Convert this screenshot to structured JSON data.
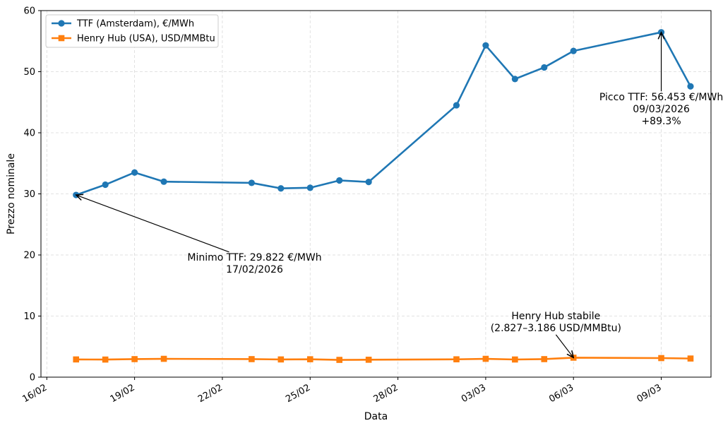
{
  "chart_data": {
    "type": "line",
    "xlabel": "Data",
    "ylabel": "Prezzo nominale",
    "xlim_days": [
      -0.2,
      22.7
    ],
    "ylim": [
      0,
      60
    ],
    "yticks": [
      0,
      10,
      20,
      30,
      40,
      50,
      60
    ],
    "xticks": [
      {
        "day": 0,
        "label": "16/02"
      },
      {
        "day": 3,
        "label": "19/02"
      },
      {
        "day": 6,
        "label": "22/02"
      },
      {
        "day": 9,
        "label": "25/02"
      },
      {
        "day": 12,
        "label": "28/02"
      },
      {
        "day": 15,
        "label": "03/03"
      },
      {
        "day": 18,
        "label": "06/03"
      },
      {
        "day": 21,
        "label": "09/03"
      }
    ],
    "grid": true,
    "legend_position": "top-left",
    "series": [
      {
        "name": "TTF (Amsterdam), €/MWh",
        "color": "#1f77b4",
        "marker": "circle",
        "x": [
          1,
          2,
          3,
          4,
          7,
          8,
          9,
          10,
          11,
          14,
          15,
          16,
          17,
          18,
          21,
          22
        ],
        "values": [
          29.822,
          31.5,
          33.5,
          32.0,
          31.8,
          30.9,
          31.0,
          32.2,
          31.95,
          44.5,
          54.3,
          48.8,
          50.7,
          53.4,
          56.453,
          47.6
        ]
      },
      {
        "name": "Henry Hub (USA), USD/MMBtu",
        "color": "#ff7f0e",
        "marker": "square",
        "x": [
          1,
          2,
          3,
          4,
          7,
          8,
          9,
          10,
          11,
          14,
          15,
          16,
          17,
          18,
          21,
          22
        ],
        "values": [
          2.9,
          2.88,
          2.95,
          3.0,
          2.95,
          2.9,
          2.93,
          2.827,
          2.85,
          2.92,
          3.0,
          2.89,
          2.95,
          3.186,
          3.12,
          3.05
        ]
      }
    ],
    "annotations": [
      {
        "lines": [
          "Minimo TTF: 29.822 €/MWh",
          "17/02/2026"
        ],
        "point_day": 1,
        "point_value": 29.822,
        "text_day": 7.1,
        "text_value": 19.1
      },
      {
        "lines": [
          "Picco TTF: 56.453 €/MWh",
          "09/03/2026",
          "+89.3%"
        ],
        "point_day": 21,
        "point_value": 56.453,
        "text_day": 21,
        "text_value": 45.3
      },
      {
        "lines": [
          "Henry Hub stabile",
          "(2.827–3.186 USD/MMBtu)"
        ],
        "point_day": 18,
        "point_value": 3.186,
        "text_day": 17.4,
        "text_value": 9.5
      }
    ]
  }
}
